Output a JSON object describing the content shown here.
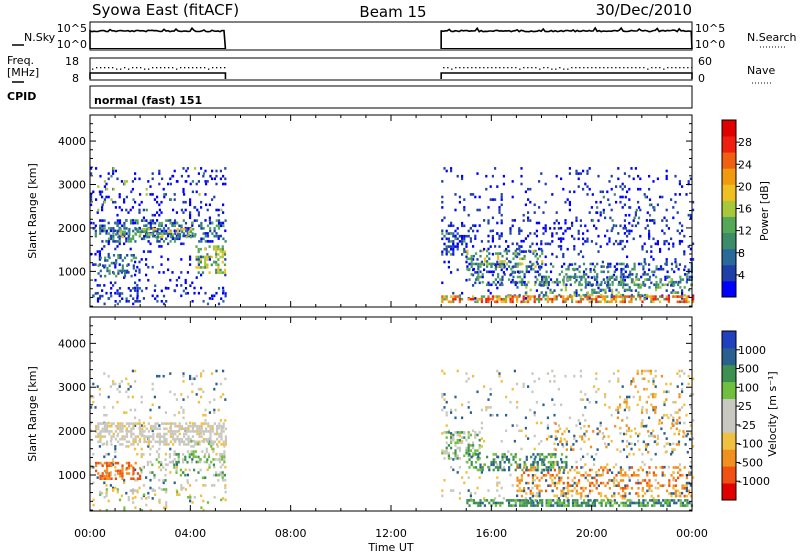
{
  "header": {
    "title": "Syowa East (fitACF)",
    "beam": "Beam 15",
    "date": "30/Dec/2010"
  },
  "status_panels": {
    "nsky_label": "N.Sky",
    "nsearch_label": "N.Search",
    "freq_label_line1": "Freq.",
    "freq_label_line2": "[MHz]",
    "nave_label": "Nave",
    "cpid_label": "CPID",
    "cpid_text": "normal (fast) 151",
    "noise_ticks": {
      "top": "10^5",
      "bottom": "10^0"
    },
    "freq_ticks": {
      "top": "18",
      "bottom": "8"
    },
    "nave_ticks": {
      "top": "60",
      "bottom": "0"
    }
  },
  "colors": {
    "power_scale": [
      "#0000ff",
      "#1e3fa8",
      "#2a6a9a",
      "#3c8c6a",
      "#55a855",
      "#a8c83c",
      "#f0c020",
      "#f09a10",
      "#f06010",
      "#f02010",
      "#e00000"
    ],
    "velocity_scale": [
      "#e00000",
      "#f05010",
      "#f09020",
      "#f0c040",
      "#c8c8c0",
      "#c8c8c0",
      "#70c040",
      "#3c9050",
      "#2a6090",
      "#2040c0"
    ]
  },
  "chart_data": [
    {
      "type": "heatmap",
      "name": "power",
      "ylabel": "Slant Range [km]",
      "yticks": [
        "1000",
        "2000",
        "3000",
        "4000"
      ],
      "ylim": [
        180,
        4600
      ],
      "xlim": [
        0,
        24
      ],
      "colorbar": {
        "label": "Power [dB]",
        "ticks": [
          "4",
          "8",
          "12",
          "16",
          "20",
          "24",
          "28"
        ],
        "range": [
          0,
          30
        ]
      },
      "data_periods_hours": [
        [
          0,
          5.4
        ],
        [
          14.0,
          24.0
        ]
      ]
    },
    {
      "type": "heatmap",
      "name": "velocity",
      "ylabel": "Slant Range [km]",
      "yticks": [
        "1000",
        "2000",
        "3000",
        "4000"
      ],
      "ylim": [
        180,
        4600
      ],
      "xlim": [
        0,
        24
      ],
      "colorbar": {
        "label": "Velocity [m s⁻¹]",
        "ticks": [
          "-1000",
          "-500",
          "-100",
          "-25",
          "25",
          "100",
          "500",
          "1000"
        ]
      },
      "data_periods_hours": [
        [
          0,
          5.4
        ],
        [
          14.0,
          24.0
        ]
      ]
    }
  ],
  "xaxis": {
    "label": "Time UT",
    "ticks": [
      "00:00",
      "04:00",
      "08:00",
      "12:00",
      "16:00",
      "20:00",
      "00:00"
    ]
  }
}
